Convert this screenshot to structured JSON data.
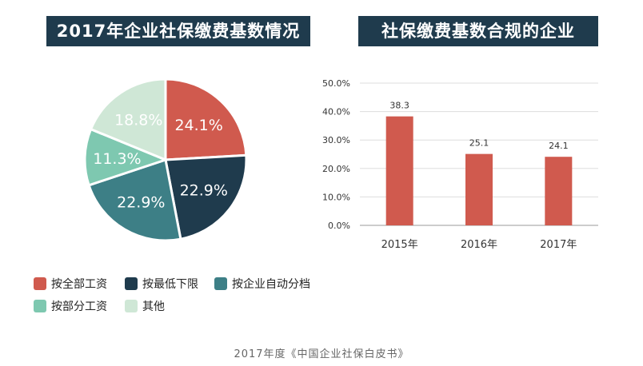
{
  "chart_data": [
    {
      "type": "pie",
      "title": "2017年企业社保缴费基数情况",
      "slices": [
        {
          "label": "按全部工资",
          "value": 24.1,
          "display": "24.1%",
          "color": "#d05a4e"
        },
        {
          "label": "按最低下限",
          "value": 22.9,
          "display": "22.9%",
          "color": "#1f3b4d"
        },
        {
          "label": "按企业自动分档",
          "value": 22.9,
          "display": "22.9%",
          "color": "#3d7f86"
        },
        {
          "label": "按部分工资",
          "value": 11.3,
          "display": "11.3%",
          "color": "#7ec8b0"
        },
        {
          "label": "其他",
          "value": 18.8,
          "display": "18.8%",
          "color": "#cfe7d6"
        }
      ],
      "legend_position": "bottom"
    },
    {
      "type": "bar",
      "title": "社保缴费基数合规的企业",
      "categories": [
        "2015年",
        "2016年",
        "2017年"
      ],
      "values": [
        38.3,
        25.1,
        24.1
      ],
      "value_labels": [
        "38.3",
        "25.1",
        "24.1"
      ],
      "ylim": [
        0,
        50
      ],
      "yticks": [
        "0.0%",
        "10.0%",
        "20.0%",
        "30.0%",
        "40.0%",
        "50.0%"
      ],
      "ytick_values": [
        0,
        10,
        20,
        30,
        40,
        50
      ],
      "bar_color": "#d05a4e",
      "grid": true
    }
  ],
  "source_note": "2017年度《中国企业社保白皮书》"
}
